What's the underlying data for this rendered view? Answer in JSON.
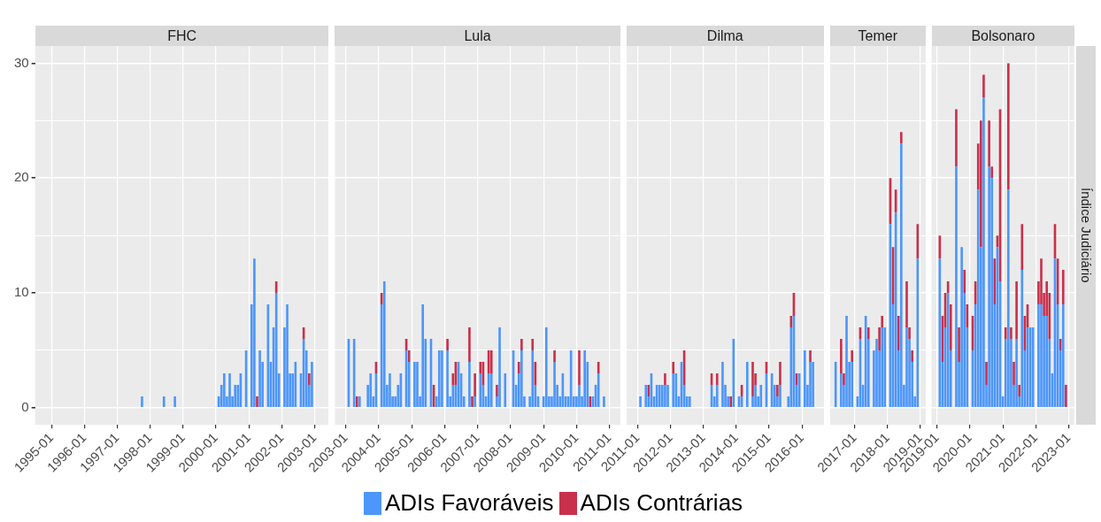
{
  "chart_data": [
    {
      "type": "bar",
      "title": "FHC",
      "stacked": true,
      "grid": true,
      "legend": "bottom",
      "xlim": [
        "1994-07",
        "2003-06"
      ],
      "xticks": [
        "1995-01",
        "1996-01",
        "1997-01",
        "1998-01",
        "1999-01",
        "2000-01",
        "2001-01",
        "2002-01",
        "2003-01"
      ],
      "ylim": [
        -1.5,
        31.5
      ],
      "yticks": [
        0,
        {
          "value": 5,
          "label": null
        },
        10,
        {
          "value": 15,
          "label": null
        },
        20,
        {
          "value": 25,
          "label": null
        },
        30
      ],
      "x": [
        "1997-10",
        "1998-06",
        "1998-10",
        "2000-02",
        "2000-03",
        "2000-04",
        "2000-05",
        "2000-06",
        "2000-07",
        "2000-08",
        "2000-09",
        "2000-10",
        "2000-12",
        "2001-02",
        "2001-03",
        "2001-04",
        "2001-05",
        "2001-06",
        "2001-08",
        "2001-09",
        "2001-10",
        "2001-11",
        "2001-12",
        "2002-02",
        "2002-03",
        "2002-04",
        "2002-05",
        "2002-06",
        "2002-08",
        "2002-09",
        "2002-10",
        "2002-11",
        "2002-12"
      ],
      "series": [
        {
          "name": "ADIs Favoráveis",
          "color": "#4c96fc",
          "values": [
            1,
            1,
            1,
            1,
            2,
            3,
            1,
            3,
            1,
            2,
            2,
            3,
            5,
            9,
            13,
            0,
            5,
            4,
            9,
            4,
            7,
            10,
            3,
            7,
            9,
            3,
            3,
            4,
            3,
            6,
            5,
            2,
            4
          ]
        },
        {
          "name": "ADIs Contrárias",
          "color": "#c9304b",
          "values": [
            0,
            0,
            0,
            0,
            0,
            0,
            0,
            0,
            0,
            0,
            0,
            0,
            0,
            0,
            0,
            1,
            0,
            0,
            0,
            0,
            0,
            1,
            0,
            0,
            0,
            0,
            0,
            0,
            0,
            1,
            0,
            1,
            0
          ]
        }
      ]
    },
    {
      "type": "bar",
      "title": "Lula",
      "stacked": true,
      "grid": true,
      "tick_labels": "x",
      "xlim": [
        "2002-09",
        "2011-05"
      ],
      "xticks": [
        "2003-01",
        "2004-01",
        "2005-01",
        "2006-01",
        "2007-01",
        "2008-01",
        "2009-01",
        "2010-01",
        "2011-01"
      ],
      "ylim": [
        -1.5,
        31.5
      ],
      "yticks": [
        0,
        {
          "value": 5,
          "label": null
        },
        10,
        {
          "value": 15,
          "label": null
        },
        20,
        {
          "value": 25,
          "label": null
        },
        30
      ],
      "x": [
        "2003-02",
        "2003-04",
        "2003-05",
        "2003-06",
        "2003-09",
        "2003-10",
        "2003-11",
        "2003-12",
        "2004-02",
        "2004-03",
        "2004-04",
        "2004-05",
        "2004-06",
        "2004-07",
        "2004-08",
        "2004-09",
        "2004-11",
        "2004-12",
        "2005-02",
        "2005-03",
        "2005-04",
        "2005-05",
        "2005-06",
        "2005-08",
        "2005-09",
        "2005-10",
        "2005-11",
        "2005-12",
        "2006-02",
        "2006-03",
        "2006-04",
        "2006-05",
        "2006-06",
        "2006-07",
        "2006-08",
        "2006-10",
        "2006-11",
        "2006-12",
        "2007-02",
        "2007-03",
        "2007-04",
        "2007-05",
        "2007-06",
        "2007-08",
        "2007-09",
        "2007-11",
        "2008-02",
        "2008-03",
        "2008-04",
        "2008-05",
        "2008-06",
        "2008-08",
        "2008-09",
        "2008-10",
        "2008-11",
        "2009-01",
        "2009-02",
        "2009-03",
        "2009-04",
        "2009-05",
        "2009-06",
        "2009-07",
        "2009-08",
        "2009-09",
        "2009-10",
        "2009-11",
        "2009-12",
        "2010-01",
        "2010-02",
        "2010-03",
        "2010-04",
        "2010-05",
        "2010-06",
        "2010-07",
        "2010-08",
        "2010-09",
        "2010-11"
      ],
      "series": [
        {
          "color": "#4c96fc",
          "values": [
            6,
            6,
            0,
            1,
            2,
            3,
            1,
            3,
            9,
            11,
            2,
            3,
            1,
            1,
            2,
            3,
            5,
            4,
            4,
            4,
            1,
            9,
            6,
            6,
            0,
            1,
            5,
            5,
            5,
            1,
            2,
            2,
            4,
            3,
            1,
            4,
            0,
            1,
            3,
            2,
            1,
            3,
            3,
            1,
            7,
            3,
            5,
            2,
            3,
            5,
            1,
            1,
            5,
            2,
            1,
            1,
            7,
            1,
            1,
            4,
            2,
            1,
            3,
            1,
            1,
            5,
            1,
            1,
            2,
            1,
            5,
            4,
            0,
            1,
            2,
            3,
            1
          ]
        },
        {
          "color": "#c9304b",
          "values": [
            0,
            0,
            1,
            0,
            0,
            0,
            0,
            1,
            1,
            0,
            0,
            0,
            0,
            0,
            0,
            0,
            1,
            1,
            0,
            0,
            0,
            0,
            0,
            0,
            2,
            0,
            0,
            0,
            1,
            0,
            1,
            2,
            0,
            0,
            0,
            3,
            1,
            2,
            1,
            2,
            0,
            2,
            2,
            1,
            0,
            0,
            0,
            0,
            1,
            1,
            0,
            0,
            1,
            2,
            0,
            0,
            0,
            0,
            0,
            1,
            0,
            0,
            0,
            0,
            0,
            0,
            0,
            0,
            3,
            0,
            0,
            0,
            1,
            0,
            0,
            1,
            0
          ]
        }
      ]
    },
    {
      "type": "bar",
      "title": "Dilma",
      "stacked": true,
      "grid": true,
      "tick_labels": "x",
      "xlim": [
        "2010-09",
        "2016-09"
      ],
      "xticks": [
        "2011-01",
        "2012-01",
        "2013-01",
        "2014-01",
        "2015-01",
        "2016-01"
      ],
      "ylim": [
        -1.5,
        31.5
      ],
      "yticks": [
        0,
        {
          "value": 5,
          "label": null
        },
        10,
        {
          "value": 15,
          "label": null
        },
        20,
        {
          "value": 25,
          "label": null
        },
        30
      ],
      "x": [
        "2011-02",
        "2011-04",
        "2011-05",
        "2011-06",
        "2011-07",
        "2011-08",
        "2011-09",
        "2011-10",
        "2011-11",
        "2011-12",
        "2012-02",
        "2012-03",
        "2012-04",
        "2012-05",
        "2012-06",
        "2012-07",
        "2012-08",
        "2013-04",
        "2013-05",
        "2013-06",
        "2013-08",
        "2013-09",
        "2013-10",
        "2013-11",
        "2013-12",
        "2014-02",
        "2014-03",
        "2014-05",
        "2014-07",
        "2014-08",
        "2014-09",
        "2014-10",
        "2014-12",
        "2015-02",
        "2015-03",
        "2015-04",
        "2015-05",
        "2015-08",
        "2015-09",
        "2015-10",
        "2015-11",
        "2015-12",
        "2016-02",
        "2016-03",
        "2016-04",
        "2016-05"
      ],
      "series": [
        {
          "color": "#4c96fc",
          "values": [
            1,
            2,
            1,
            3,
            1,
            2,
            2,
            2,
            2,
            2,
            3,
            3,
            1,
            4,
            2,
            1,
            1,
            2,
            1,
            2,
            4,
            2,
            1,
            0,
            6,
            1,
            1,
            4,
            1,
            2,
            1,
            2,
            3,
            3,
            2,
            1,
            2,
            1,
            7,
            8,
            2,
            3,
            5,
            2,
            4,
            4
          ]
        },
        {
          "color": "#c9304b",
          "values": [
            0,
            0,
            1,
            0,
            0,
            0,
            0,
            0,
            1,
            0,
            1,
            0,
            0,
            0,
            3,
            0,
            0,
            1,
            0,
            1,
            0,
            0,
            0,
            1,
            0,
            0,
            1,
            0,
            3,
            1,
            0,
            0,
            1,
            0,
            0,
            1,
            2,
            0,
            1,
            2,
            1,
            0,
            0,
            0,
            1,
            0
          ]
        }
      ]
    },
    {
      "type": "bar",
      "title": "Temer",
      "stacked": true,
      "grid": true,
      "tick_labels": "x",
      "xlim": [
        "2016-04",
        "2019-03"
      ],
      "xticks": [
        "2017-01",
        "2018-01",
        "2019-01"
      ],
      "ylim": [
        -1.5,
        31.5
      ],
      "yticks": [
        0,
        {
          "value": 5,
          "label": null
        },
        10,
        {
          "value": 15,
          "label": null
        },
        20,
        {
          "value": 25,
          "label": null
        },
        30
      ],
      "x": [
        "2016-06",
        "2016-08",
        "2016-09",
        "2016-10",
        "2016-11",
        "2016-12",
        "2017-02",
        "2017-03",
        "2017-04",
        "2017-05",
        "2017-06",
        "2017-08",
        "2017-09",
        "2017-10",
        "2017-11",
        "2017-12",
        "2018-02",
        "2018-03",
        "2018-04",
        "2018-05",
        "2018-06",
        "2018-07",
        "2018-08",
        "2018-09",
        "2018-10",
        "2018-11",
        "2018-12"
      ],
      "series": [
        {
          "color": "#4c96fc",
          "values": [
            4,
            3,
            2,
            8,
            4,
            4,
            1,
            6,
            2,
            8,
            6,
            5,
            6,
            5,
            7,
            7,
            16,
            9,
            17,
            5,
            23,
            2,
            7,
            6,
            4,
            1,
            13
          ]
        },
        {
          "color": "#c9304b",
          "values": [
            0,
            3,
            1,
            0,
            0,
            1,
            0,
            1,
            0,
            0,
            1,
            0,
            0,
            2,
            1,
            0,
            4,
            5,
            2,
            3,
            1,
            0,
            4,
            1,
            1,
            0,
            3
          ]
        }
      ]
    },
    {
      "type": "bar",
      "title": "Bolsonaro",
      "stacked": true,
      "grid": true,
      "tick_labels": "x",
      "annotations": [
        "Índice Judiciário"
      ],
      "xlim": [
        "2018-11",
        "2023-03"
      ],
      "xticks": [
        "2019-01",
        "2020-01",
        "2021-01",
        "2022-01",
        "2023-01"
      ],
      "ylim": [
        -1.5,
        31.5
      ],
      "yticks": [
        0,
        {
          "value": 5,
          "label": null
        },
        10,
        {
          "value": 15,
          "label": null
        },
        20,
        {
          "value": 25,
          "label": null
        },
        30
      ],
      "x": [
        "2019-02",
        "2019-03",
        "2019-04",
        "2019-05",
        "2019-06",
        "2019-08",
        "2019-09",
        "2019-10",
        "2019-11",
        "2019-12",
        "2020-02",
        "2020-03",
        "2020-04",
        "2020-05",
        "2020-06",
        "2020-07",
        "2020-08",
        "2020-09",
        "2020-10",
        "2020-11",
        "2020-12",
        "2021-01",
        "2021-02",
        "2021-03",
        "2021-04",
        "2021-05",
        "2021-06",
        "2021-07",
        "2021-08",
        "2021-09",
        "2021-10",
        "2021-11",
        "2021-12",
        "2022-02",
        "2022-03",
        "2022-04",
        "2022-05",
        "2022-06",
        "2022-07",
        "2022-08",
        "2022-09",
        "2022-10",
        "2022-11",
        "2022-12"
      ],
      "series": [
        {
          "color": "#4c96fc",
          "values": [
            13,
            4,
            7,
            10,
            5,
            21,
            4,
            14,
            10,
            7,
            5,
            9,
            19,
            14,
            27,
            2,
            21,
            20,
            9,
            14,
            11,
            1,
            6,
            19,
            6,
            2,
            6,
            1,
            12,
            5,
            7,
            7,
            7,
            9,
            9,
            8,
            8,
            6,
            3,
            13,
            9,
            5,
            9,
            0
          ]
        },
        {
          "color": "#c9304b",
          "values": [
            2,
            4,
            3,
            1,
            4,
            5,
            3,
            0,
            2,
            2,
            3,
            2,
            4,
            11,
            2,
            2,
            4,
            1,
            4,
            1,
            15,
            0,
            1,
            11,
            1,
            2,
            5,
            1,
            4,
            3,
            2,
            0,
            0,
            2,
            4,
            2,
            3,
            4,
            0,
            3,
            4,
            1,
            3,
            2
          ]
        }
      ]
    }
  ]
}
